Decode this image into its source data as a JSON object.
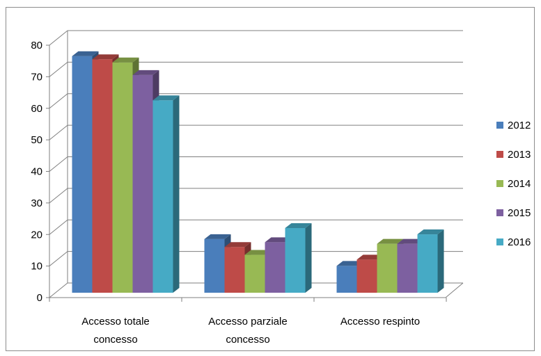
{
  "chart_data": {
    "type": "bar",
    "categories": [
      [
        "Accesso totale",
        "concesso"
      ],
      [
        "Accesso parziale",
        "concesso"
      ],
      [
        "Accesso respinto"
      ]
    ],
    "series": [
      {
        "name": "2012",
        "values": [
          75,
          17,
          8.5
        ]
      },
      {
        "name": "2013",
        "values": [
          74,
          14.5,
          10.5
        ]
      },
      {
        "name": "2014",
        "values": [
          73,
          12,
          15.5
        ]
      },
      {
        "name": "2015",
        "values": [
          69,
          16,
          15.5
        ]
      },
      {
        "name": "2016",
        "values": [
          61,
          20.5,
          18.5
        ]
      }
    ],
    "yticks": [
      "0",
      "10",
      "20",
      "30",
      "40",
      "50",
      "60",
      "70",
      "80"
    ],
    "ylim": [
      0,
      80
    ],
    "grid": true,
    "legend_position": "right"
  },
  "colors": {
    "2012": "#4a7ebb",
    "2013": "#be4b48",
    "2014": "#98b954",
    "2015": "#7d60a0",
    "2016": "#46aac5"
  }
}
